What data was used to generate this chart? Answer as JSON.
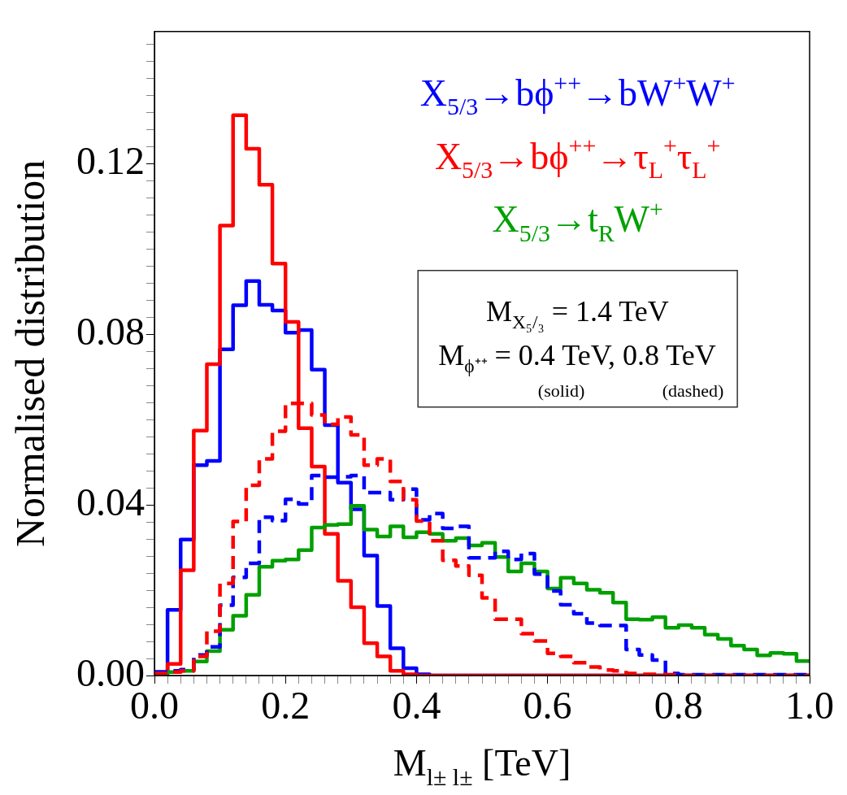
{
  "chart_data": {
    "type": "histogram",
    "xlabel": "M$_{l± l±}$ [TeV]",
    "ylabel": "Normalised distribution",
    "bins": [
      0,
      0.02,
      0.04,
      0.06,
      0.08,
      0.1,
      0.12,
      0.14,
      0.16,
      0.18,
      0.2,
      0.22,
      0.24,
      0.26,
      0.28,
      0.3,
      0.32,
      0.34,
      0.36,
      0.38,
      0.4,
      0.42,
      0.44,
      0.46,
      0.48,
      0.5,
      0.52,
      0.54,
      0.56,
      0.58,
      0.6,
      0.62,
      0.64,
      0.66,
      0.68,
      0.7,
      0.72,
      0.74,
      0.76,
      0.78,
      0.8,
      0.82,
      0.84,
      0.86,
      0.88,
      0.9,
      0.92,
      0.94,
      0.96,
      0.98,
      1
    ],
    "series": [
      {
        "name": "X$_{5/3}$→bϕ$^{++}$→bW$^{+}$W$^{+}$",
        "color": "#0000ff",
        "line_style": "solid",
        "values": [
          0.0008,
          0.0154,
          0.0319,
          0.0493,
          0.0503,
          0.0765,
          0.0868,
          0.0925,
          0.0869,
          0.0856,
          0.0804,
          0.081,
          0.0717,
          0.0587,
          0.0452,
          0.039,
          0.0281,
          0.0163,
          0.0064,
          0.0017,
          0.0003,
          0,
          0,
          0,
          0,
          0,
          0,
          0,
          0,
          0,
          0,
          0,
          0,
          0,
          0,
          0,
          0,
          0,
          0,
          0,
          0,
          0,
          0,
          0,
          0,
          0,
          0,
          0,
          0,
          0
        ]
      },
      {
        "name": "X$_{5/3}$→bϕ$^{++}$→τ$_{L}$$^{+}$τ$_{L}$$^{+}$",
        "color": "#ff0000",
        "line_style": "solid",
        "values": [
          0,
          0.0027,
          0.0247,
          0.0574,
          0.073,
          0.1055,
          0.1314,
          0.1235,
          0.1151,
          0.0966,
          0.0829,
          0.058,
          0.049,
          0.0332,
          0.0222,
          0.016,
          0.0076,
          0.0045,
          0.0011,
          0.0003,
          0,
          0,
          0,
          0,
          0,
          0,
          0,
          0,
          0,
          0,
          0,
          0,
          0,
          0,
          0,
          0,
          0,
          0,
          0,
          0,
          0,
          0,
          0,
          0,
          0,
          0,
          0,
          0,
          0,
          0
        ]
      },
      {
        "name": "X$_{5/3}$→t$_{R}$W$^{+}$",
        "color": "#00a000",
        "line_style": "solid",
        "values": [
          0.0005,
          0.0008,
          0.0011,
          0.0033,
          0.0057,
          0.0107,
          0.014,
          0.0189,
          0.0255,
          0.0269,
          0.0272,
          0.0294,
          0.0347,
          0.0353,
          0.0355,
          0.0398,
          0.0342,
          0.0326,
          0.035,
          0.0324,
          0.0336,
          0.0332,
          0.0316,
          0.0322,
          0.0305,
          0.0311,
          0.0278,
          0.0244,
          0.0263,
          0.0244,
          0.0204,
          0.0229,
          0.0216,
          0.0201,
          0.0194,
          0.0171,
          0.0132,
          0.0131,
          0.0137,
          0.0112,
          0.0118,
          0.0112,
          0.0096,
          0.0086,
          0.007,
          0.0061,
          0.0047,
          0.0053,
          0.0051,
          0.0034
        ]
      },
      {
        "color": "#0000ff",
        "line_style": "dashed",
        "values": [
          0.0008,
          0.0011,
          0.0014,
          0.0048,
          0.0067,
          0.0165,
          0.023,
          0.0263,
          0.0371,
          0.0363,
          0.0413,
          0.0402,
          0.0469,
          0.0465,
          0.0466,
          0.0469,
          0.0429,
          0.0429,
          0.0412,
          0.0437,
          0.0365,
          0.038,
          0.0345,
          0.035,
          0.0276,
          0.0276,
          0.0291,
          0.0272,
          0.0286,
          0.0238,
          0.0198,
          0.0166,
          0.0145,
          0.0123,
          0.0117,
          0.0117,
          0.0061,
          0.0048,
          0.0036,
          0.0005,
          0.0002,
          0.0002,
          0.0002,
          0.0002,
          0.0002,
          0.0002,
          0.0002,
          0.0002,
          0.0002,
          0.0002
        ]
      },
      {
        "color": "#ff0000",
        "line_style": "dashed",
        "values": [
          0.0005,
          0.0008,
          0.0011,
          0.0045,
          0.0104,
          0.0216,
          0.0361,
          0.0446,
          0.0508,
          0.0573,
          0.0638,
          0.0638,
          0.0611,
          0.0589,
          0.0606,
          0.0564,
          0.0493,
          0.0508,
          0.0455,
          0.0412,
          0.0362,
          0.0316,
          0.027,
          0.0257,
          0.0235,
          0.0182,
          0.0132,
          0.0132,
          0.0098,
          0.0081,
          0.0052,
          0.0045,
          0.003,
          0.002,
          0.0013,
          0.0011,
          0.0005,
          0.0003,
          0.0003,
          0.0002,
          0,
          0,
          0,
          0,
          0,
          0,
          0,
          0,
          0,
          0
        ]
      }
    ],
    "annotations": [
      "M$_{X₅/₃}$ = 1.4 TeV",
      "M$_{ϕ⁺⁺}$ = 0.4 TeV, 0.8 TeV",
      "(solid)",
      "(dashed)"
    ],
    "legend": "top right",
    "grid": false,
    "xlim": [
      0,
      1
    ],
    "ylim": [
      0,
      0.151
    ],
    "xticks": [
      {
        "value": 0,
        "label": "0.0"
      },
      {
        "value": 0.02,
        "label": null
      },
      {
        "value": 0.04,
        "label": null
      },
      {
        "value": 0.06,
        "label": null
      },
      {
        "value": 0.08,
        "label": null
      },
      {
        "value": 0.1,
        "label": null
      },
      {
        "value": 0.12,
        "label": null
      },
      {
        "value": 0.14,
        "label": null
      },
      {
        "value": 0.16,
        "label": null
      },
      {
        "value": 0.18,
        "label": null
      },
      {
        "value": 0.2,
        "label": "0.2"
      },
      {
        "value": 0.22,
        "label": null
      },
      {
        "value": 0.24,
        "label": null
      },
      {
        "value": 0.26,
        "label": null
      },
      {
        "value": 0.28,
        "label": null
      },
      {
        "value": 0.3,
        "label": null
      },
      {
        "value": 0.32,
        "label": null
      },
      {
        "value": 0.34,
        "label": null
      },
      {
        "value": 0.36,
        "label": null
      },
      {
        "value": 0.38,
        "label": null
      },
      {
        "value": 0.4,
        "label": "0.4"
      },
      {
        "value": 0.42,
        "label": null
      },
      {
        "value": 0.44,
        "label": null
      },
      {
        "value": 0.46,
        "label": null
      },
      {
        "value": 0.48,
        "label": null
      },
      {
        "value": 0.5,
        "label": null
      },
      {
        "value": 0.52,
        "label": null
      },
      {
        "value": 0.54,
        "label": null
      },
      {
        "value": 0.56,
        "label": null
      },
      {
        "value": 0.58,
        "label": null
      },
      {
        "value": 0.6,
        "label": "0.6"
      },
      {
        "value": 0.62,
        "label": null
      },
      {
        "value": 0.64,
        "label": null
      },
      {
        "value": 0.66,
        "label": null
      },
      {
        "value": 0.68,
        "label": null
      },
      {
        "value": 0.7,
        "label": null
      },
      {
        "value": 0.72,
        "label": null
      },
      {
        "value": 0.74,
        "label": null
      },
      {
        "value": 0.76,
        "label": null
      },
      {
        "value": 0.78,
        "label": null
      },
      {
        "value": 0.8,
        "label": "0.8"
      },
      {
        "value": 0.82,
        "label": null
      },
      {
        "value": 0.84,
        "label": null
      },
      {
        "value": 0.86,
        "label": null
      },
      {
        "value": 0.88,
        "label": null
      },
      {
        "value": 0.9,
        "label": null
      },
      {
        "value": 0.92,
        "label": null
      },
      {
        "value": 0.94,
        "label": null
      },
      {
        "value": 0.96,
        "label": null
      },
      {
        "value": 0.98,
        "label": null
      },
      {
        "value": 1,
        "label": "1.0"
      }
    ],
    "yticks": [
      {
        "value": 0,
        "label": "0.00"
      },
      {
        "value": 0.004,
        "label": null
      },
      {
        "value": 0.008,
        "label": null
      },
      {
        "value": 0.012,
        "label": null
      },
      {
        "value": 0.016,
        "label": null
      },
      {
        "value": 0.02,
        "label": null
      },
      {
        "value": 0.024,
        "label": null
      },
      {
        "value": 0.028,
        "label": null
      },
      {
        "value": 0.032,
        "label": null
      },
      {
        "value": 0.036,
        "label": null
      },
      {
        "value": 0.04,
        "label": "0.04"
      },
      {
        "value": 0.044,
        "label": null
      },
      {
        "value": 0.048,
        "label": null
      },
      {
        "value": 0.052,
        "label": null
      },
      {
        "value": 0.056,
        "label": null
      },
      {
        "value": 0.06,
        "label": null
      },
      {
        "value": 0.064,
        "label": null
      },
      {
        "value": 0.068,
        "label": null
      },
      {
        "value": 0.072,
        "label": null
      },
      {
        "value": 0.076,
        "label": null
      },
      {
        "value": 0.08,
        "label": "0.08"
      },
      {
        "value": 0.084,
        "label": null
      },
      {
        "value": 0.088,
        "label": null
      },
      {
        "value": 0.092,
        "label": null
      },
      {
        "value": 0.096,
        "label": null
      },
      {
        "value": 0.1,
        "label": null
      },
      {
        "value": 0.104,
        "label": null
      },
      {
        "value": 0.108,
        "label": null
      },
      {
        "value": 0.112,
        "label": null
      },
      {
        "value": 0.116,
        "label": null
      },
      {
        "value": 0.12,
        "label": "0.12"
      },
      {
        "value": 0.124,
        "label": null
      },
      {
        "value": 0.128,
        "label": null
      },
      {
        "value": 0.132,
        "label": null
      },
      {
        "value": 0.136,
        "label": null
      },
      {
        "value": 0.14,
        "label": null
      },
      {
        "value": 0.144,
        "label": null
      },
      {
        "value": 0.148,
        "label": null
      }
    ]
  }
}
